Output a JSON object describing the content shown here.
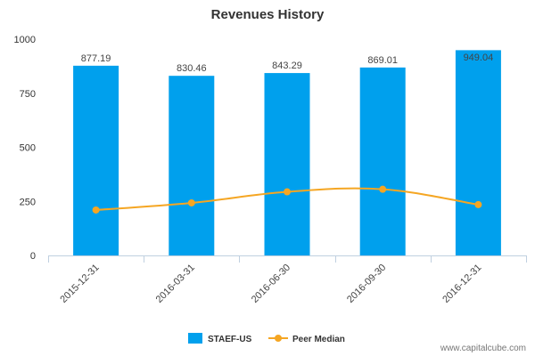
{
  "chart_data": {
    "type": "bar",
    "title": "Revenues History",
    "categories": [
      "2015-12-31",
      "2016-03-31",
      "2016-06-30",
      "2016-09-30",
      "2016-12-31"
    ],
    "series": [
      {
        "name": "STAEF-US",
        "kind": "bar",
        "color": "#00a0ed",
        "values": [
          877.19,
          830.46,
          843.29,
          869.01,
          949.04
        ],
        "labels": [
          "877.19",
          "830.46",
          "843.29",
          "869.01",
          "949.04"
        ]
      },
      {
        "name": "Peer Median",
        "kind": "line",
        "color": "#f5a623",
        "values": [
          210,
          243,
          294,
          306,
          235
        ]
      }
    ],
    "yticks": [
      "0",
      "250",
      "500",
      "750",
      "1000"
    ],
    "ylim": [
      0,
      1000
    ],
    "grid": false,
    "legend_position": "bottom-center"
  },
  "credit": "www.capitalcube.com"
}
